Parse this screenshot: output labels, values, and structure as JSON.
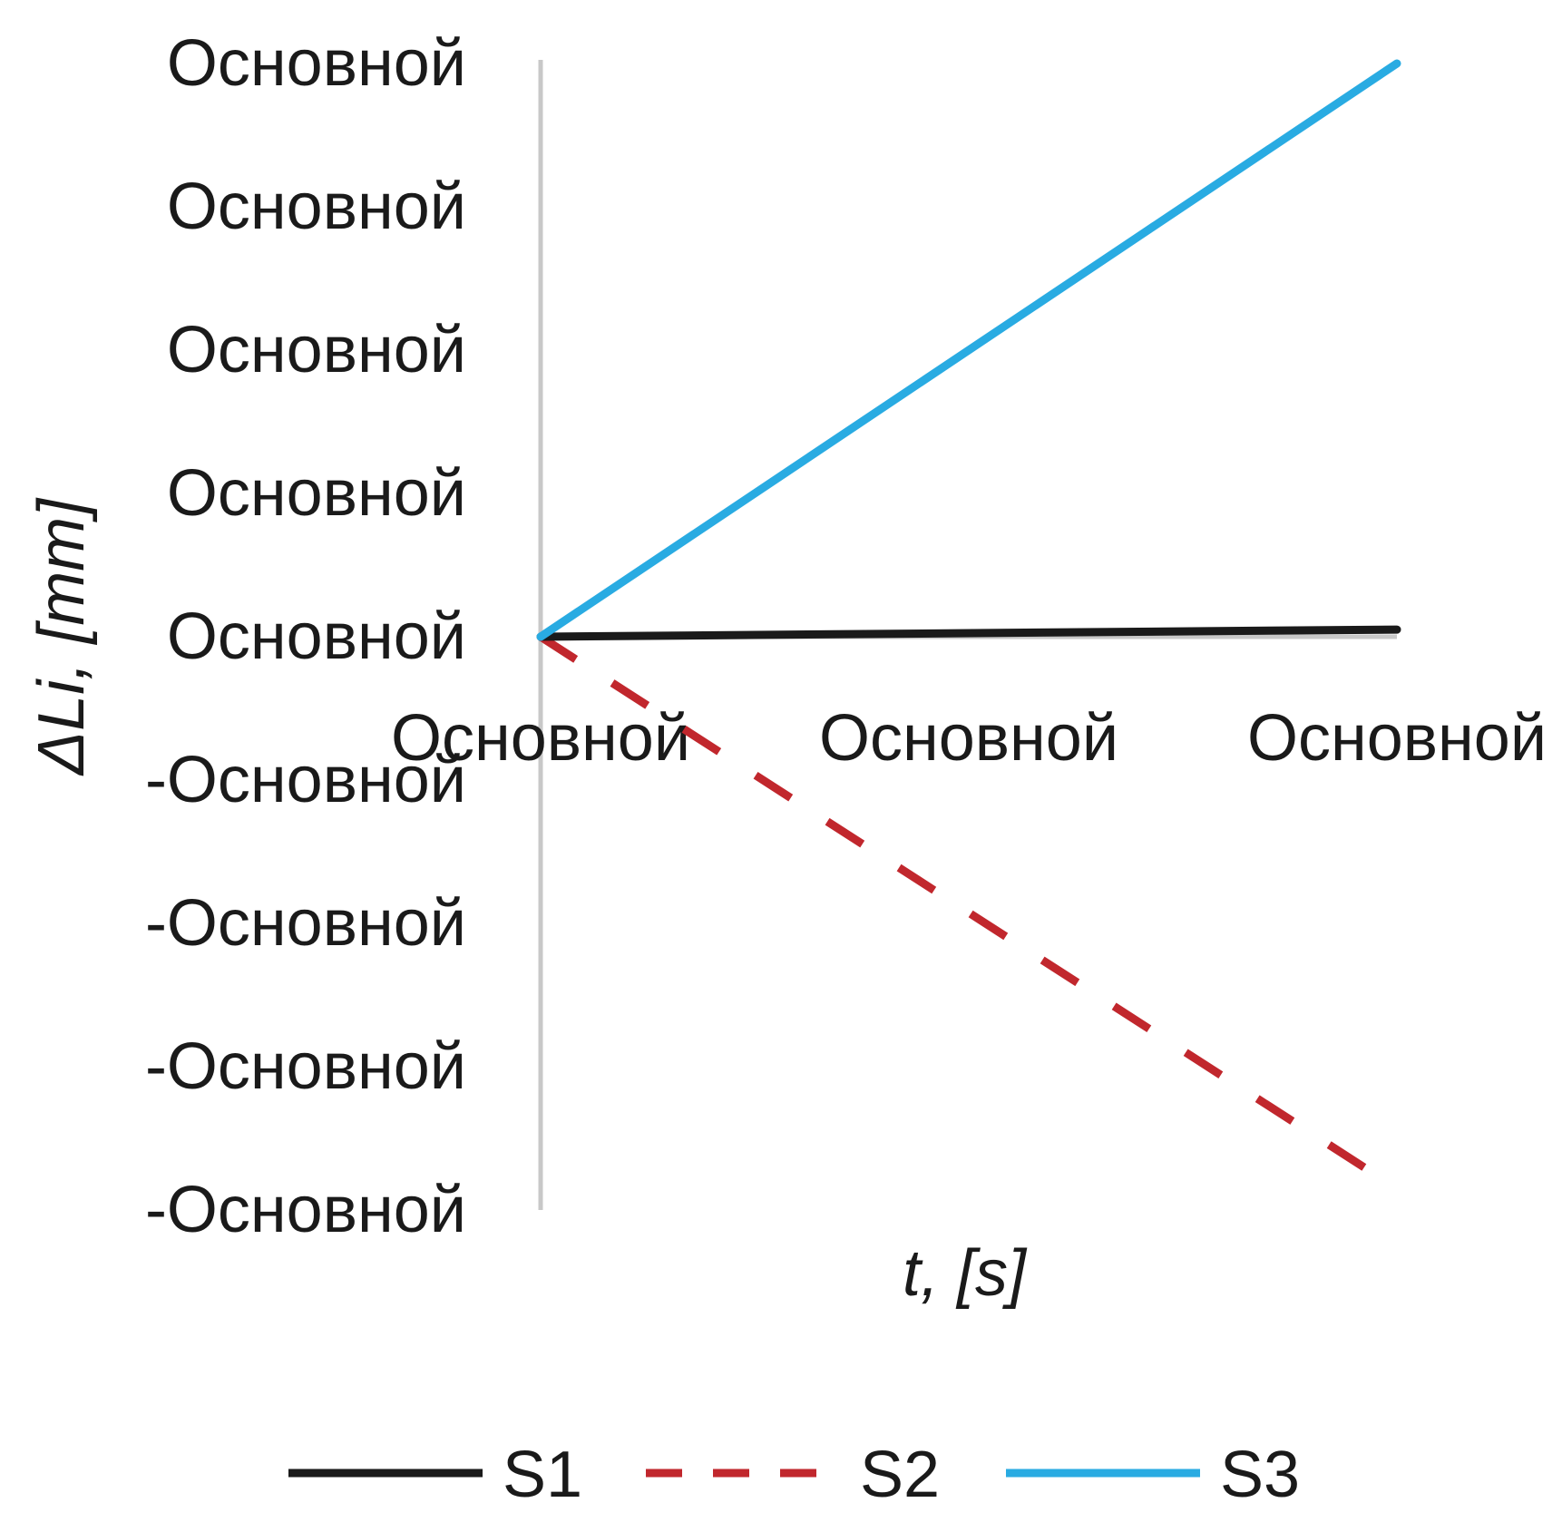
{
  "chart_data": {
    "type": "line",
    "title": "",
    "xlabel": "t, [s]",
    "ylabel": "ΔLi, [mm]",
    "x_tick_labels": [
      "Основной",
      "Основной",
      "Основной"
    ],
    "y_tick_labels": [
      "Основной",
      "Основной",
      "Основной",
      "Основной",
      "Основной",
      "-Основной",
      "-Основной",
      "-Основной",
      "-Основной"
    ],
    "x": [
      0,
      2
    ],
    "xlim": [
      0,
      2
    ],
    "ylim": [
      -4,
      4
    ],
    "grid": false,
    "legend_position": "bottom",
    "series": [
      {
        "name": "S1",
        "values": [
          0,
          0.05
        ],
        "color": "#1a1a1a",
        "style": "solid"
      },
      {
        "name": "S2",
        "values": [
          0,
          -3.85
        ],
        "color": "#c1272d",
        "style": "dashed"
      },
      {
        "name": "S3",
        "values": [
          0,
          4
        ],
        "color": "#29abe2",
        "style": "solid"
      }
    ],
    "axis_color": "#c8c8c8"
  }
}
